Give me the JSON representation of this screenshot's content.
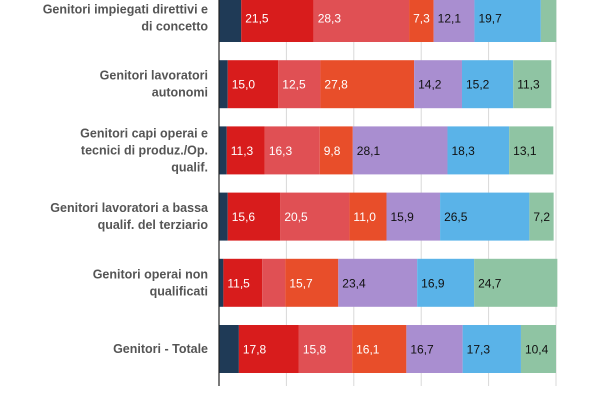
{
  "chart_data": {
    "type": "bar",
    "orientation": "horizontal",
    "stacked": true,
    "title": "",
    "xlabel": "",
    "ylabel": "",
    "xlim": [
      0,
      100
    ],
    "grid": true,
    "legend": "none",
    "categories": [
      [
        "Genitori impiegati direttivi e",
        "di concetto"
      ],
      [
        "Genitori lavoratori",
        "autonomi"
      ],
      [
        "Genitori capi operai e",
        "tecnici di produz./Op.",
        "qualif."
      ],
      [
        "Genitori lavoratori a bassa",
        "qualif. del terziario"
      ],
      [
        "Genitori operai non",
        "qualificati"
      ],
      [
        "Genitori - Totale"
      ]
    ],
    "series": [
      {
        "color": "#1f3a56",
        "values": [
          6.6,
          2.6,
          2.3,
          2.6,
          1.3,
          5.9
        ]
      },
      {
        "color": "#d81c1c",
        "values": [
          21.5,
          15.0,
          11.3,
          15.6,
          11.5,
          17.8
        ]
      },
      {
        "color": "#e05054",
        "values": [
          28.3,
          12.5,
          16.3,
          20.5,
          6.9,
          15.8
        ]
      },
      {
        "color": "#e84e2a",
        "values": [
          7.3,
          27.8,
          9.8,
          11.0,
          15.7,
          16.1
        ]
      },
      {
        "color": "#a98ed0",
        "values": [
          12.1,
          14.2,
          28.1,
          15.9,
          23.4,
          16.7
        ]
      },
      {
        "color": "#5ab3e8",
        "values": [
          19.7,
          15.2,
          18.3,
          26.5,
          16.9,
          17.3
        ]
      },
      {
        "color": "#8fc4a3",
        "values": [
          4.6,
          11.3,
          13.1,
          7.2,
          24.7,
          10.4
        ]
      }
    ],
    "value_labels": [
      [
        "",
        "21,5",
        "28,3",
        "7,3",
        "12,1",
        "19,7",
        ""
      ],
      [
        "",
        "15,0",
        "12,5",
        "27,8",
        "14,2",
        "15,2",
        "11,3"
      ],
      [
        "",
        "11,3",
        "16,3",
        "9,8",
        "28,1",
        "18,3",
        "13,1"
      ],
      [
        "",
        "15,6",
        "20,5",
        "11,0",
        "15,9",
        "26,5",
        "7,2"
      ],
      [
        "",
        "11,5",
        "",
        "15,7",
        "23,4",
        "16,9",
        "24,7"
      ],
      [
        "",
        "17,8",
        "15,8",
        "16,1",
        "16,7",
        "17,3",
        "10,4"
      ]
    ],
    "label_colors": [
      "#ffffff",
      "#ffffff",
      "#ffffff",
      "#ffffff",
      "#111111",
      "#111111",
      "#111111"
    ]
  }
}
